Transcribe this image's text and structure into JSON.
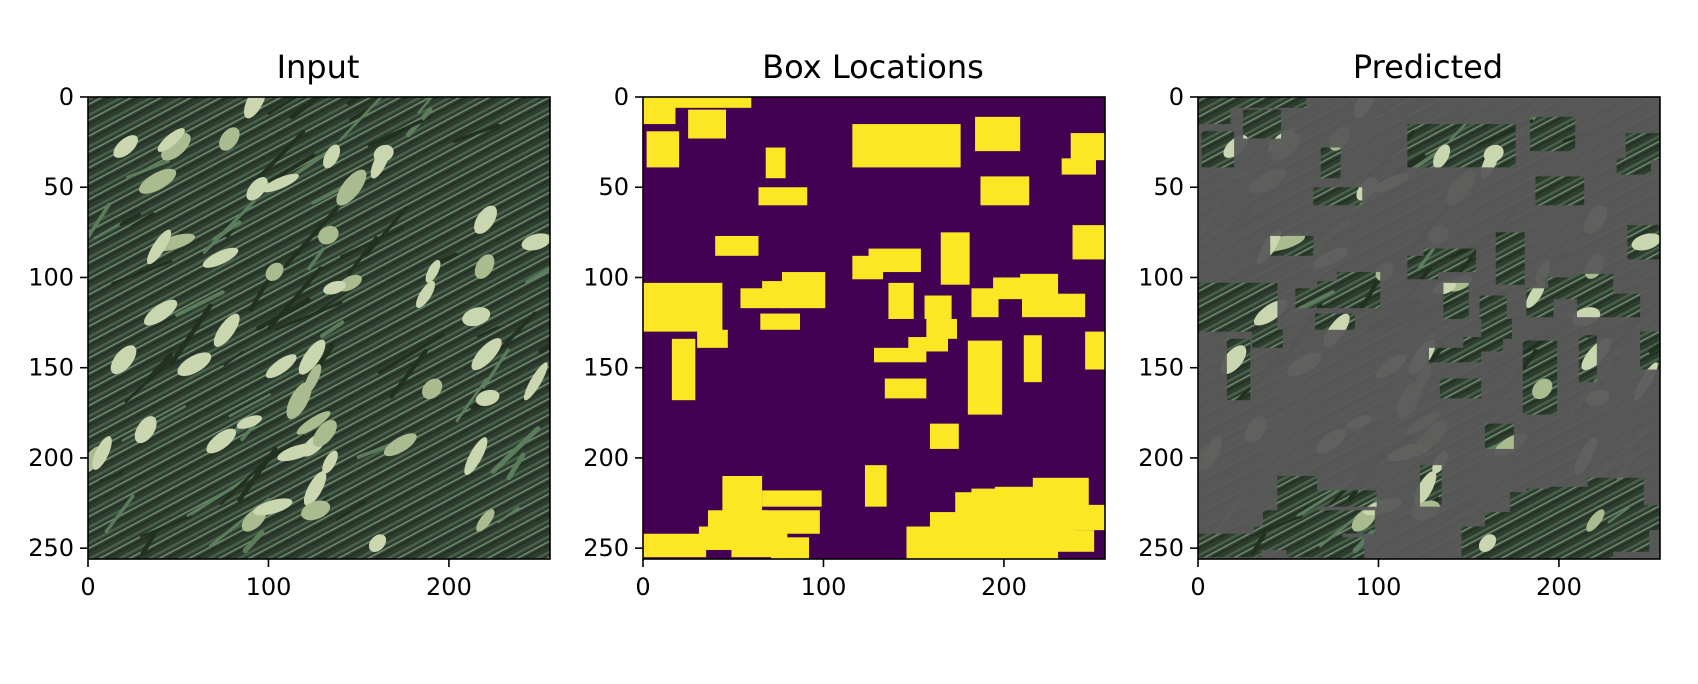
{
  "chart_data": [
    {
      "type": "image",
      "title": "Input",
      "xlim": [
        0,
        256
      ],
      "ylim": [
        256,
        0
      ],
      "xticks": [
        0,
        100,
        200
      ],
      "yticks": [
        0,
        50,
        100,
        150,
        200,
        250
      ],
      "content": "photograph of wheat ears and green leaves"
    },
    {
      "type": "heatmap",
      "title": "Box Locations",
      "xlim": [
        0,
        256
      ],
      "ylim": [
        256,
        0
      ],
      "xticks": [
        0,
        100,
        200
      ],
      "yticks": [
        0,
        50,
        100,
        150,
        200,
        250
      ],
      "colors": {
        "background": "#440154",
        "box": "#fde725"
      },
      "boxes": [
        [
          0,
          0,
          18,
          15
        ],
        [
          18,
          0,
          60,
          6
        ],
        [
          25,
          7,
          46,
          23
        ],
        [
          2,
          19,
          20,
          39
        ],
        [
          116,
          15,
          176,
          39
        ],
        [
          184,
          11,
          209,
          30
        ],
        [
          237,
          20,
          256,
          35
        ],
        [
          232,
          34,
          251,
          43
        ],
        [
          68,
          28,
          79,
          45
        ],
        [
          64,
          50,
          91,
          60
        ],
        [
          187,
          44,
          214,
          60
        ],
        [
          40,
          77,
          64,
          88
        ],
        [
          238,
          71,
          256,
          90
        ],
        [
          116,
          88,
          133,
          101
        ],
        [
          125,
          84,
          154,
          97
        ],
        [
          165,
          75,
          181,
          104
        ],
        [
          0,
          103,
          44,
          130
        ],
        [
          54,
          106,
          78,
          117
        ],
        [
          66,
          102,
          93,
          113
        ],
        [
          77,
          97,
          101,
          117
        ],
        [
          182,
          106,
          197,
          122
        ],
        [
          194,
          100,
          211,
          112
        ],
        [
          209,
          98,
          230,
          110
        ],
        [
          210,
          109,
          245,
          122
        ],
        [
          136,
          103,
          150,
          123
        ],
        [
          156,
          110,
          171,
          123
        ],
        [
          157,
          123,
          174,
          134
        ],
        [
          147,
          133,
          169,
          141
        ],
        [
          128,
          139,
          157,
          147
        ],
        [
          65,
          120,
          87,
          129
        ],
        [
          30,
          129,
          47,
          139
        ],
        [
          16,
          134,
          29,
          168
        ],
        [
          180,
          135,
          199,
          176
        ],
        [
          211,
          132,
          221,
          158
        ],
        [
          245,
          130,
          256,
          151
        ],
        [
          134,
          156,
          157,
          167
        ],
        [
          159,
          181,
          175,
          195
        ],
        [
          123,
          204,
          135,
          227
        ],
        [
          31,
          238,
          61,
          251
        ],
        [
          36,
          229,
          69,
          243
        ],
        [
          44,
          210,
          66,
          245
        ],
        [
          66,
          218,
          99,
          227
        ],
        [
          48,
          229,
          98,
          242
        ],
        [
          49,
          238,
          80,
          255
        ],
        [
          71,
          244,
          92,
          260
        ],
        [
          0,
          242,
          35,
          255
        ],
        [
          173,
          219,
          183,
          240
        ],
        [
          159,
          230,
          184,
          247
        ],
        [
          182,
          217,
          200,
          237
        ],
        [
          195,
          216,
          218,
          242
        ],
        [
          216,
          211,
          247,
          229
        ],
        [
          214,
          219,
          239,
          241
        ],
        [
          230,
          226,
          256,
          240
        ],
        [
          202,
          237,
          230,
          265
        ],
        [
          198,
          240,
          250,
          252
        ],
        [
          146,
          238,
          169,
          265
        ],
        [
          162,
          234,
          185,
          265
        ],
        [
          180,
          230,
          210,
          270
        ]
      ]
    },
    {
      "type": "image",
      "title": "Predicted",
      "xlim": [
        0,
        256
      ],
      "ylim": [
        256,
        0
      ],
      "xticks": [
        0,
        100,
        200
      ],
      "yticks": [
        0,
        50,
        100,
        150,
        200,
        250
      ],
      "content": "wheat photograph with non-box regions filled grey",
      "colors": {
        "fill": "#595959"
      }
    }
  ]
}
